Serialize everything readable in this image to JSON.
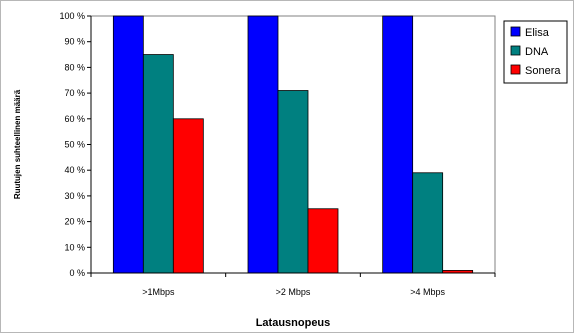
{
  "chart_data": {
    "type": "bar",
    "categories": [
      ">1Mbps",
      ">2 Mbps",
      ">4 Mbps"
    ],
    "series": [
      {
        "name": "Elisa",
        "color": "#0000ff",
        "values": [
          100,
          100,
          100
        ]
      },
      {
        "name": "DNA",
        "color": "#008080",
        "values": [
          85,
          71,
          39
        ]
      },
      {
        "name": "Sonera",
        "color": "#ff0000",
        "values": [
          60,
          25,
          1
        ]
      }
    ],
    "xlabel": "Latausnopeus",
    "ylabel": "Ruutujen suhteellinen määrä",
    "ylim": [
      0,
      100
    ],
    "yticks": [
      "0 %",
      "10 %",
      "20 %",
      "30 %",
      "40 %",
      "50 %",
      "60 %",
      "70 %",
      "80 %",
      "90 %",
      "100 %"
    ],
    "grid": false,
    "legend_position": "right"
  }
}
